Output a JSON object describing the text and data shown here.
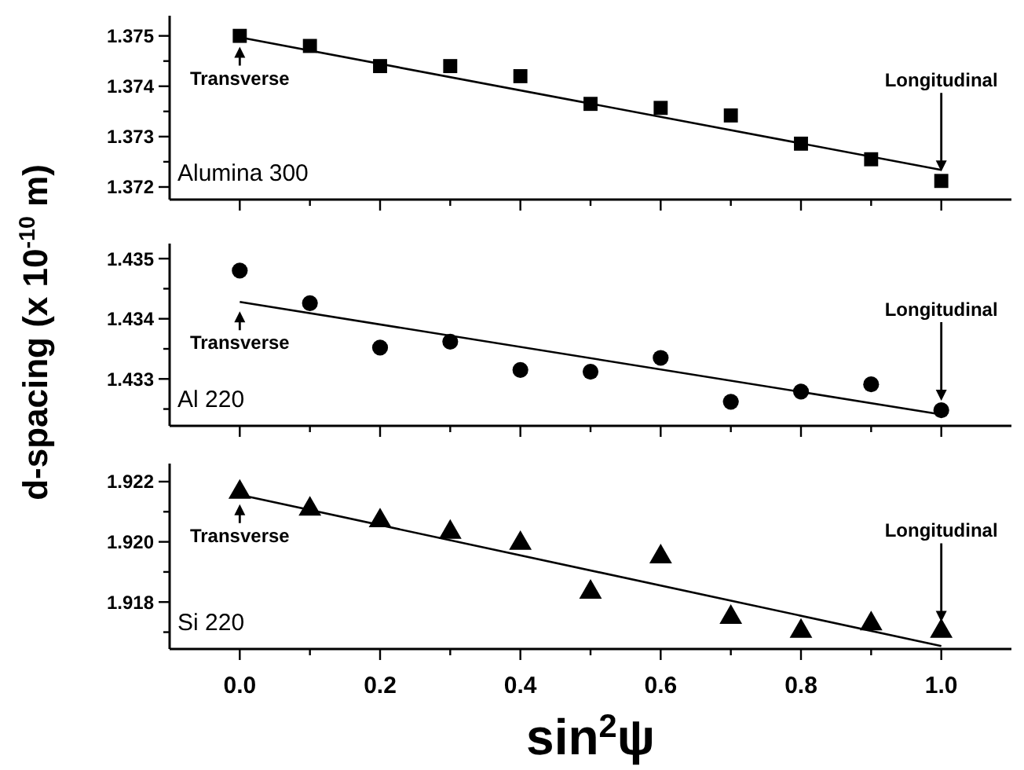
{
  "chart_data": [
    {
      "type": "scatter",
      "xlim": [
        -0.1,
        1.1
      ],
      "ylim": [
        1.37175,
        1.3754
      ],
      "tick_labels": "y",
      "xticks": [
        0,
        {
          "value": 0.1,
          "label": null
        },
        0.2,
        {
          "value": 0.3,
          "label": null
        },
        0.4,
        {
          "value": 0.5,
          "label": null
        },
        0.6,
        {
          "value": 0.7,
          "label": null
        },
        0.8,
        {
          "value": 0.9,
          "label": null
        },
        1
      ],
      "yticks": [
        1.372,
        {
          "value": 1.3725,
          "label": null
        },
        1.373,
        {
          "value": 1.3735,
          "label": null
        },
        1.374,
        {
          "value": 1.3745,
          "label": null
        },
        1.375
      ],
      "series": [
        {
          "type": "scatter",
          "marker": "square",
          "color": "#000000",
          "x": [
            0,
            0.1,
            0.2,
            0.3,
            0.4,
            0.5,
            0.6,
            0.7,
            0.8,
            0.9,
            1
          ],
          "values": [
            1.375,
            1.3748,
            1.3744,
            1.3744,
            1.3742,
            1.37365,
            1.37357,
            1.37342,
            1.37286,
            1.37255,
            1.37212
          ]
        },
        {
          "type": "line",
          "marker": "none",
          "color": "#000000",
          "x": [
            0,
            1
          ],
          "values": [
            1.37497,
            1.37234
          ]
        }
      ],
      "annotations": [
        "Alumina 300",
        "Transverse",
        "Longitudinal"
      ]
    },
    {
      "type": "scatter",
      "xlim": [
        -0.1,
        1.1
      ],
      "ylim": [
        1.43222,
        1.43525
      ],
      "tick_labels": "y",
      "ylabel": "d-spacing (x 10$^{-10}$ m)",
      "xticks": [
        0,
        {
          "value": 0.1,
          "label": null
        },
        0.2,
        {
          "value": 0.3,
          "label": null
        },
        0.4,
        {
          "value": 0.5,
          "label": null
        },
        0.6,
        {
          "value": 0.7,
          "label": null
        },
        0.8,
        {
          "value": 0.9,
          "label": null
        },
        1
      ],
      "yticks": [
        {
          "value": 1.4325,
          "label": null
        },
        1.433,
        {
          "value": 1.4335,
          "label": null
        },
        1.434,
        {
          "value": 1.4345,
          "label": null
        },
        1.435
      ],
      "series": [
        {
          "type": "scatter",
          "marker": "circle",
          "color": "#000000",
          "x": [
            0,
            0.1,
            0.2,
            0.3,
            0.4,
            0.5,
            0.6,
            0.7,
            0.8,
            0.9,
            1
          ],
          "values": [
            1.4348,
            1.43426,
            1.43352,
            1.43362,
            1.43315,
            1.43312,
            1.43335,
            1.43262,
            1.43279,
            1.43291,
            1.43248
          ]
        },
        {
          "type": "line",
          "marker": "none",
          "color": "#000000",
          "x": [
            0,
            1
          ],
          "values": [
            1.43428,
            1.43241
          ]
        }
      ],
      "annotations": [
        "Al 220",
        "Transverse",
        "Longitudinal"
      ]
    },
    {
      "type": "scatter",
      "xlim": [
        -0.1,
        1.1
      ],
      "ylim": [
        1.91644,
        1.9226
      ],
      "xlabel": "sin$^{2}$ψ",
      "xticks": [
        {
          "value": 0,
          "label": "0.0"
        },
        {
          "value": 0.1,
          "label": null
        },
        0.2,
        {
          "value": 0.3,
          "label": null
        },
        0.4,
        {
          "value": 0.5,
          "label": null
        },
        0.6,
        {
          "value": 0.7,
          "label": null
        },
        0.8,
        {
          "value": 0.9,
          "label": null
        },
        {
          "value": 1,
          "label": "1.0"
        }
      ],
      "yticks": [
        {
          "value": 1.917,
          "label": null
        },
        1.918,
        {
          "value": 1.919,
          "label": null
        },
        {
          "value": 1.92,
          "label": "1.920"
        },
        {
          "value": 1.921,
          "label": null
        },
        1.922
      ],
      "series": [
        {
          "type": "scatter",
          "marker": "triangle",
          "color": "#000000",
          "x": [
            0,
            0.1,
            0.2,
            0.3,
            0.4,
            0.5,
            0.6,
            0.7,
            0.8,
            0.9,
            1
          ],
          "values": [
            1.92165,
            1.92109,
            1.9207,
            1.92032,
            1.91995,
            1.91833,
            1.9195,
            1.91749,
            1.91703,
            1.91728,
            1.91703
          ]
        },
        {
          "type": "line",
          "marker": "none",
          "color": "#000000",
          "x": [
            0,
            1
          ],
          "values": [
            1.92156,
            1.91654
          ]
        }
      ],
      "annotations": [
        "Si 220",
        "Transverse",
        "Longitudinal"
      ]
    }
  ]
}
